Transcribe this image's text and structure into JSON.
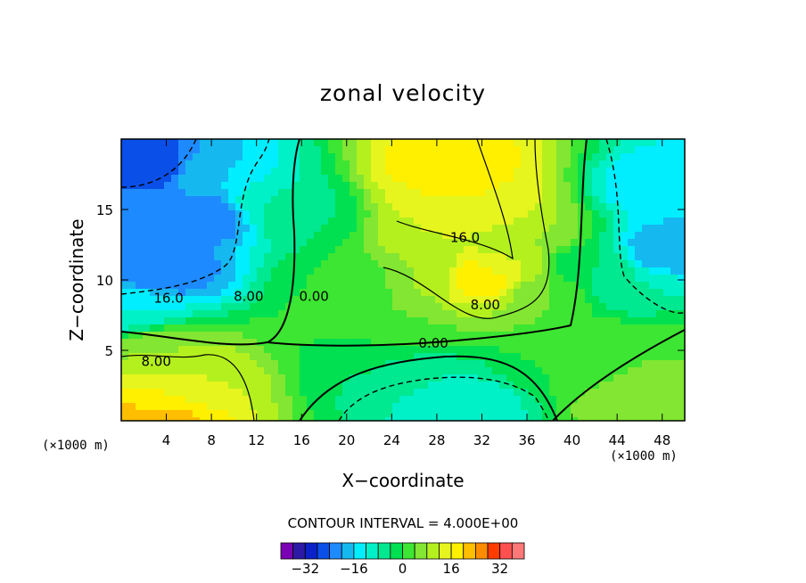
{
  "chart_data": {
    "type": "contour",
    "title": "zonal velocity",
    "xlabel": "X−coordinate",
    "ylabel": "Z−coordinate",
    "x_unit": "(×1000 m)",
    "y_unit": "(×1000 m)",
    "xlim": [
      0,
      50
    ],
    "ylim": [
      0,
      20
    ],
    "x_ticks": [
      4,
      8,
      12,
      16,
      20,
      24,
      28,
      32,
      36,
      40,
      44,
      48
    ],
    "y_ticks": [
      5,
      10,
      15
    ],
    "contour_interval_text": "CONTOUR INTERVAL = 4.000E+00",
    "contour_labels": [
      {
        "text": "16.0",
        "x": 30.5,
        "y": 12.7
      },
      {
        "text": "8.00",
        "x": 32.3,
        "y": 7.9
      },
      {
        "text": "0.00",
        "x": 27.7,
        "y": 5.2
      },
      {
        "text": "0.00",
        "x": 17.1,
        "y": 8.5
      },
      {
        "text": "8.00",
        "x": 11.3,
        "y": 8.5
      },
      {
        "text": "16.0",
        "x": 4.2,
        "y": 8.4
      },
      {
        "text": "8.00",
        "x": 3.1,
        "y": 3.9
      }
    ],
    "colorbar": {
      "tick_labels": [
        "−32",
        "−16",
        "0",
        "16",
        "32"
      ],
      "tick_values": [
        -32,
        -16,
        0,
        16,
        32
      ],
      "levels": [
        -40,
        -36,
        -32,
        -28,
        -24,
        -20,
        -16,
        -12,
        -8,
        -4,
        0,
        4,
        8,
        12,
        16,
        20,
        24,
        28,
        32,
        36,
        40
      ],
      "colors": [
        "#7a00b4",
        "#2c1aa6",
        "#0a22c8",
        "#0a4fe8",
        "#1e8aff",
        "#16b8f0",
        "#00eeff",
        "#00f0c8",
        "#00e890",
        "#00e050",
        "#3ce632",
        "#82e632",
        "#b4f01e",
        "#e6f51e",
        "#fff000",
        "#ffbe00",
        "#ff8c00",
        "#ff3c00",
        "#ff5050",
        "#ff7878"
      ]
    },
    "value_fields": [
      {
        "value": -28,
        "x": 2.5,
        "y": 18.0
      },
      {
        "value": -24,
        "x": 7.5,
        "y": 14.5
      },
      {
        "value": -24,
        "x": 3.5,
        "y": 10.5
      },
      {
        "value": -20,
        "x": 2.5,
        "y": 14.5
      },
      {
        "value": -20,
        "x": 48.5,
        "y": 12.0
      },
      {
        "value": -16,
        "x": 8.0,
        "y": 17.5
      },
      {
        "value": -16,
        "x": 48.0,
        "y": 16.5
      },
      {
        "value": -12,
        "x": 1.0,
        "y": 8.0
      },
      {
        "value": -12,
        "x": 30.0,
        "y": 1.0
      },
      {
        "value": -8,
        "x": 13.5,
        "y": 15.5
      },
      {
        "value": -8,
        "x": 45.0,
        "y": 9.5
      },
      {
        "value": -8,
        "x": 26.0,
        "y": 2.5
      },
      {
        "value": -4,
        "x": 16.0,
        "y": 14.5
      },
      {
        "value": -4,
        "x": 41.5,
        "y": 11.0
      },
      {
        "value": -4,
        "x": 22.0,
        "y": 3.5
      },
      {
        "value": 0,
        "x": 20.0,
        "y": 10.0
      },
      {
        "value": 0,
        "x": 20.5,
        "y": 5.5
      },
      {
        "value": 0,
        "x": 39.5,
        "y": 4.0
      },
      {
        "value": 4,
        "x": 23.5,
        "y": 7.5
      },
      {
        "value": 4,
        "x": 38.0,
        "y": 9.0
      },
      {
        "value": 4,
        "x": 45.5,
        "y": 5.0
      },
      {
        "value": 8,
        "x": 27.0,
        "y": 10.5
      },
      {
        "value": 8,
        "x": 36.0,
        "y": 13.0
      },
      {
        "value": 8,
        "x": 4.0,
        "y": 5.0
      },
      {
        "value": 8,
        "x": 46.0,
        "y": 1.5
      },
      {
        "value": 12,
        "x": 27.5,
        "y": 13.5
      },
      {
        "value": 12,
        "x": 34.0,
        "y": 11.0
      },
      {
        "value": 12,
        "x": 7.0,
        "y": 3.0
      },
      {
        "value": 16,
        "x": 28.5,
        "y": 16.5
      },
      {
        "value": 16,
        "x": 32.0,
        "y": 15.0
      },
      {
        "value": 16,
        "x": 3.0,
        "y": 1.5
      },
      {
        "value": 20,
        "x": 29.0,
        "y": 18.0
      },
      {
        "value": 20,
        "x": 32.0,
        "y": 10.2
      },
      {
        "value": 24,
        "x": 2.5,
        "y": 0.3
      }
    ]
  }
}
